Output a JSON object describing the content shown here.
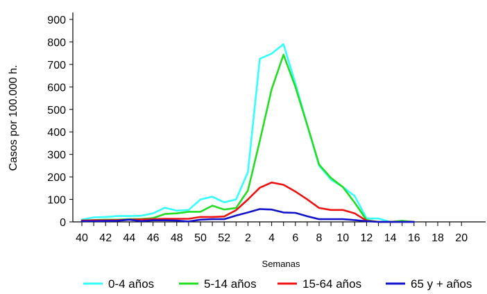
{
  "chart_data": {
    "type": "line",
    "ylabel": "Casos por 100.000 h.",
    "xlabel": "Semanas",
    "ylim": [
      0,
      900
    ],
    "y_ticks": [
      0,
      100,
      200,
      300,
      400,
      500,
      600,
      700,
      800,
      900
    ],
    "x_tick_labels": [
      "40",
      "42",
      "44",
      "46",
      "48",
      "50",
      "52",
      "2",
      "4",
      "6",
      "8",
      "10",
      "12",
      "14",
      "16",
      "18",
      "20"
    ],
    "weeks": [
      "40",
      "41",
      "42",
      "43",
      "44",
      "45",
      "46",
      "47",
      "48",
      "49",
      "50",
      "51",
      "52",
      "1",
      "2",
      "3",
      "4",
      "5",
      "6",
      "7",
      "8",
      "9",
      "10",
      "11",
      "12",
      "13",
      "14",
      "15",
      "16",
      "17",
      "18",
      "19",
      "20"
    ],
    "legend_position": "bottom",
    "grid": false,
    "series": [
      {
        "name": "0-4 años",
        "color": "#33FFFF",
        "values": [
          10,
          20,
          22,
          26,
          26,
          27,
          38,
          63,
          50,
          53,
          100,
          112,
          87,
          100,
          222,
          725,
          748,
          790,
          615,
          430,
          250,
          188,
          155,
          115,
          15,
          15,
          0,
          0,
          0,
          null,
          null,
          null,
          null
        ]
      },
      {
        "name": "5-14 años",
        "color": "#22DD22",
        "values": [
          6,
          8,
          10,
          10,
          12,
          13,
          17,
          35,
          38,
          45,
          45,
          72,
          55,
          62,
          140,
          360,
          590,
          743,
          600,
          430,
          255,
          195,
          155,
          85,
          8,
          0,
          0,
          5,
          0,
          null,
          null,
          null,
          null
        ]
      },
      {
        "name": "15-64 años",
        "color": "#EE1111",
        "values": [
          6,
          7,
          7,
          8,
          10,
          11,
          12,
          14,
          14,
          14,
          22,
          22,
          24,
          52,
          100,
          152,
          175,
          165,
          135,
          100,
          62,
          53,
          53,
          38,
          5,
          0,
          0,
          0,
          0,
          null,
          null,
          null,
          null
        ]
      },
      {
        "name": "65 y + años",
        "color": "#1111CC",
        "values": [
          3,
          3,
          4,
          5,
          10,
          3,
          7,
          7,
          6,
          2,
          10,
          12,
          12,
          28,
          42,
          57,
          55,
          42,
          40,
          25,
          12,
          12,
          12,
          8,
          3,
          0,
          0,
          0,
          0,
          null,
          null,
          null,
          null
        ]
      }
    ]
  }
}
